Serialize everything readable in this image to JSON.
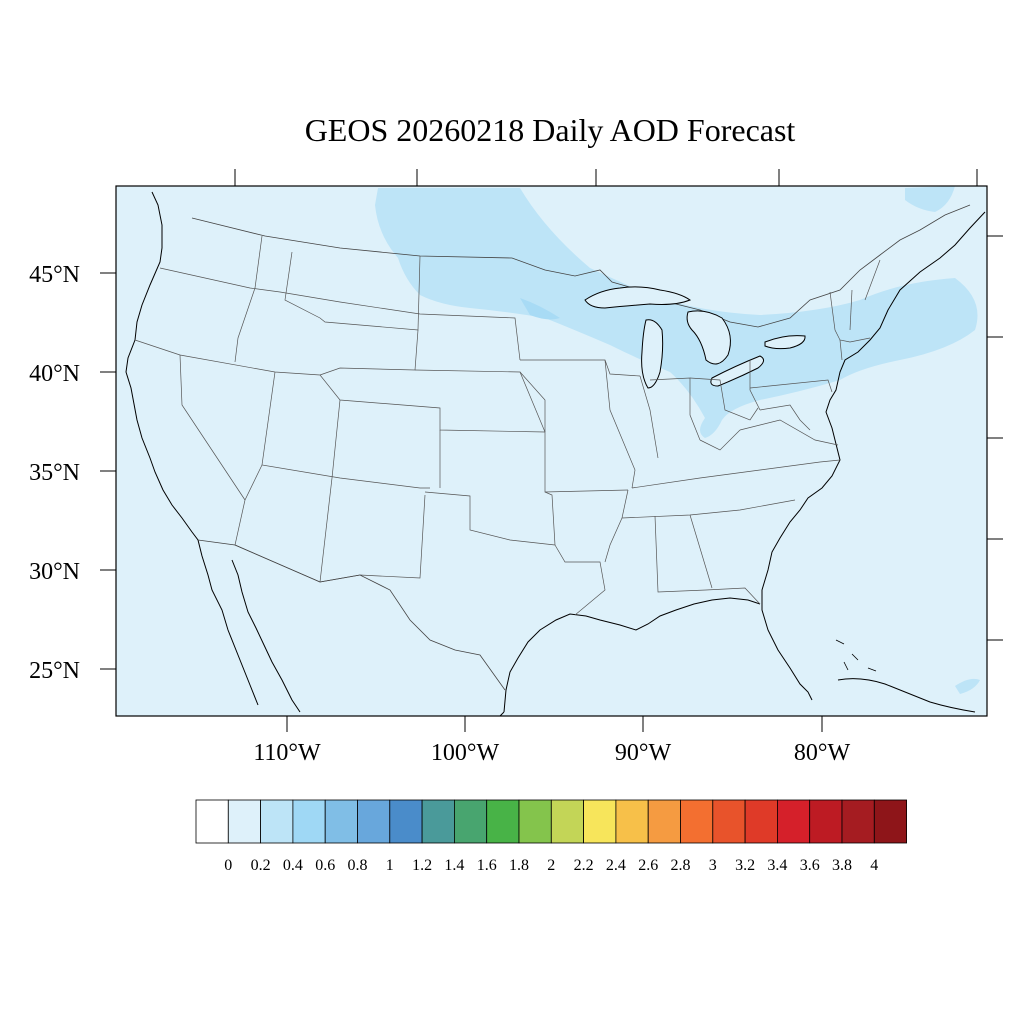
{
  "title": "GEOS 20260218 Daily AOD Forecast",
  "map": {
    "projection": "lambert-conformal",
    "region": "continental-united-states",
    "show_state_borders": true,
    "show_coastlines": true,
    "show_lakes": true,
    "background_color": "#def1fa",
    "plume_color": "#bde4f7",
    "plume_core_color": "#9fd8f5"
  },
  "axes": {
    "lat_labels": [
      "45°N",
      "40°N",
      "35°N",
      "30°N",
      "25°N"
    ],
    "lon_labels": [
      "110°W",
      "100°W",
      "90°W",
      "80°W"
    ]
  },
  "colorbar": {
    "tick_labels": [
      "0",
      "0.2",
      "0.4",
      "0.6",
      "0.8",
      "1",
      "1.2",
      "1.4",
      "1.6",
      "1.8",
      "2",
      "2.2",
      "2.4",
      "2.6",
      "2.8",
      "3",
      "3.2",
      "3.4",
      "3.6",
      "3.8",
      "4"
    ],
    "colors": [
      "#ffffff",
      "#def1fa",
      "#bde4f7",
      "#9fd8f5",
      "#80bee6",
      "#68a7dc",
      "#4a8cca",
      "#4a9a9a",
      "#48a56f",
      "#48b347",
      "#84c44c",
      "#c3d557",
      "#f7e55b",
      "#f7c049",
      "#f59b41",
      "#f36f30",
      "#e8532b",
      "#df3a28",
      "#d5202a",
      "#bd1b23",
      "#a51c21",
      "#8e1519"
    ]
  },
  "aod_field": {
    "dominant_range": [
      0,
      0.2
    ],
    "plume_range": [
      0.2,
      0.4
    ],
    "plume_region": "northern plains – upper midwest – great lakes – northeast"
  }
}
